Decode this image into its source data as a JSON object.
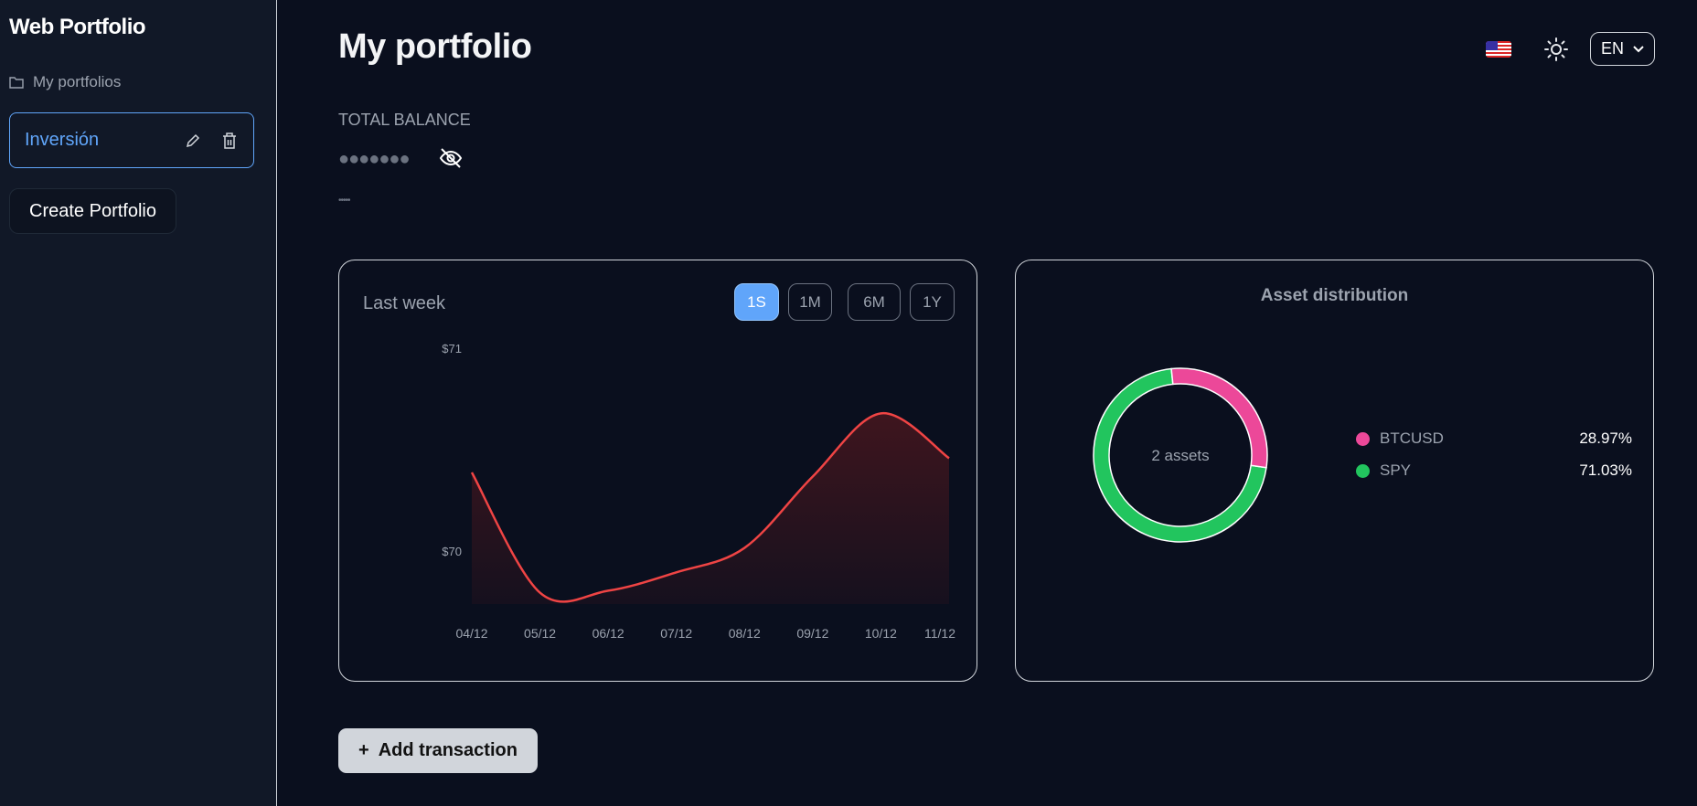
{
  "sidebar": {
    "app_title": "Web Portfolio",
    "folder_label": "My portfolios",
    "portfolios": [
      {
        "name": "Inversión"
      }
    ],
    "create_label": "Create Portfolio"
  },
  "header": {
    "title": "My portfolio",
    "language": "EN",
    "flag_icon": "us-flag-icon",
    "theme_icon": "sun-icon"
  },
  "balance": {
    "label": "TOTAL BALANCE",
    "hidden_value": "●●●●●●●",
    "hidden_sub": "•••••",
    "toggle_icon": "eye-off-icon"
  },
  "chart_data": [
    {
      "type": "area",
      "title": "Last week",
      "ranges": [
        "1S",
        "1M",
        "6M",
        "1Y"
      ],
      "active_range": "1S",
      "categories": [
        "04/12",
        "05/12",
        "06/12",
        "07/12",
        "08/12",
        "09/12",
        "10/12",
        "11/12"
      ],
      "values": [
        70.39,
        69.8,
        69.81,
        69.9,
        70.02,
        70.37,
        70.68,
        70.46
      ],
      "y_ticks": [
        {
          "value": 70,
          "label": "$70"
        },
        {
          "value": 71,
          "label": "$71"
        }
      ],
      "color": "#ef4444",
      "grid": false
    },
    {
      "type": "pie",
      "title": "Asset distribution",
      "center_label": "2 assets",
      "slices": [
        {
          "name": "BTCUSD",
          "value": 28.97,
          "label": "28.97%",
          "color": "#ec4899"
        },
        {
          "name": "SPY",
          "value": 71.03,
          "label": "71.03%",
          "color": "#22c55e"
        }
      ],
      "legend": "right"
    }
  ],
  "actions": {
    "add_transaction": "Add transaction",
    "add_icon": "+"
  }
}
